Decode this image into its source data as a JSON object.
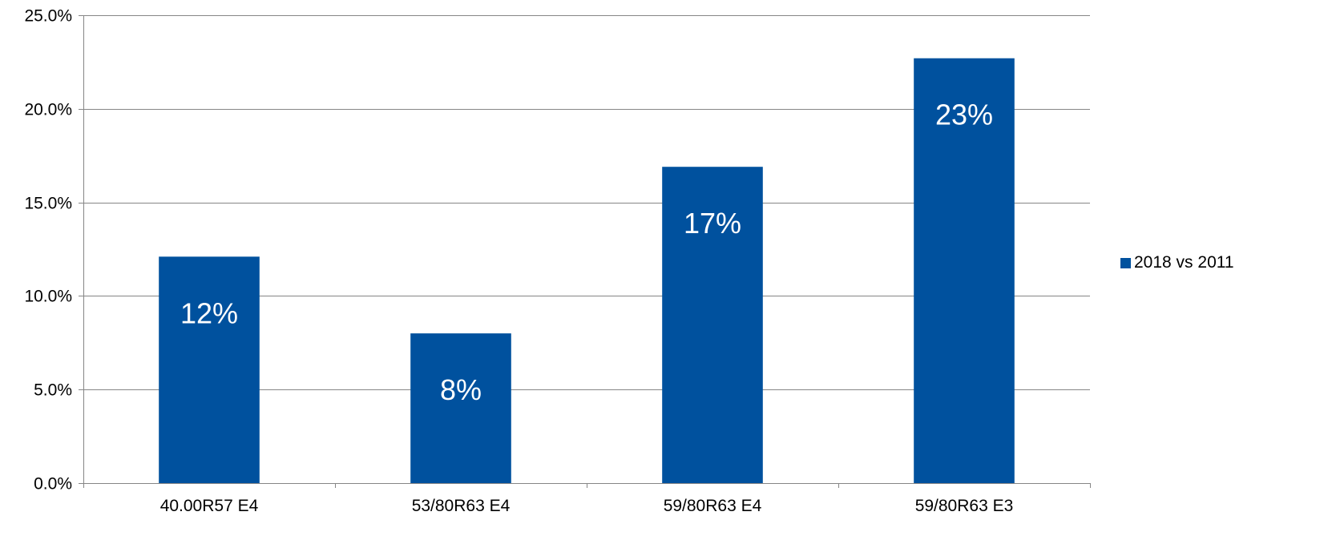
{
  "chart_data": {
    "type": "bar",
    "categories": [
      "40.00R57 E4",
      "53/80R63 E4",
      "59/80R63 E4",
      "59/80R63 E3"
    ],
    "series": [
      {
        "name": "2018 vs 2011",
        "values": [
          12.1,
          8.0,
          16.9,
          22.7
        ],
        "data_labels": [
          "12%",
          "8%",
          "17%",
          "23%"
        ],
        "color": "#00519E"
      }
    ],
    "y_ticks": [
      "0.0%",
      "5.0%",
      "10.0%",
      "15.0%",
      "20.0%",
      "25.0%"
    ],
    "ylim": [
      0,
      25
    ],
    "y_tick_step": 5,
    "grid": true,
    "legend_position": "right",
    "axis_color": "#868686",
    "grid_color": "#868686"
  }
}
